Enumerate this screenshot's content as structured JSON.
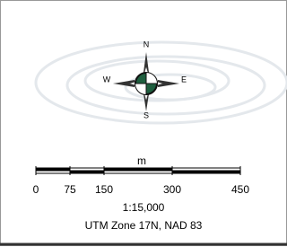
{
  "compass": {
    "north": "N",
    "east": "E",
    "south": "S",
    "west": "W"
  },
  "scale_bar": {
    "unit": "m",
    "ticks": [
      0,
      75,
      150,
      300,
      450
    ]
  },
  "scale": "1:15,000",
  "projection": "UTM Zone 17N, NAD 83"
}
